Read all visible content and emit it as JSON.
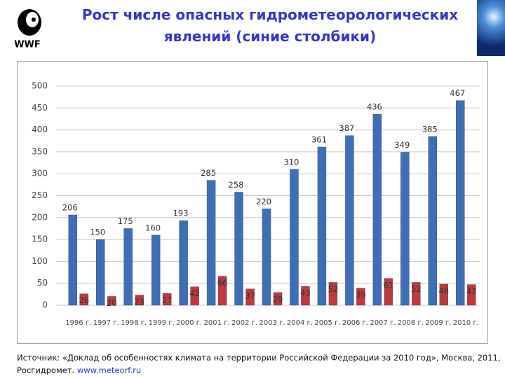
{
  "logo": {
    "text": "WWF"
  },
  "chart_data": {
    "type": "bar",
    "title": "Рост числе опасных гидрометеорологических явлений (синие столбики)",
    "categories": [
      "1996 г.",
      "1997 г.",
      "1998 г.",
      "1999 г.",
      "2000 г.",
      "2001 г.",
      "2002 г.",
      "2003 г.",
      "2004 г.",
      "2005 г.",
      "2006 г.",
      "2007 г.",
      "2008 г.",
      "2009 г.",
      "2010 г."
    ],
    "series": [
      {
        "color": "#3d6fb8",
        "values": [
          206,
          150,
          175,
          160,
          193,
          285,
          258,
          220,
          310,
          361,
          387,
          436,
          349,
          385,
          467
        ]
      },
      {
        "color": "#c0393b",
        "values": [
          26,
          20,
          23,
          27,
          42,
          66,
          37,
          29,
          43,
          52,
          39,
          61,
          52,
          48,
          47
        ]
      }
    ],
    "ylim": [
      0,
      500
    ],
    "yticks": [
      0,
      50,
      100,
      150,
      200,
      250,
      300,
      350,
      400,
      450,
      500
    ],
    "grid": true
  },
  "source": {
    "text": "Источник: «Доклад об особенностях климата на территории Российской Федерации за 2010 год», Москва, 2011, Росгидромет.",
    "link": "www.meteorf.ru"
  }
}
